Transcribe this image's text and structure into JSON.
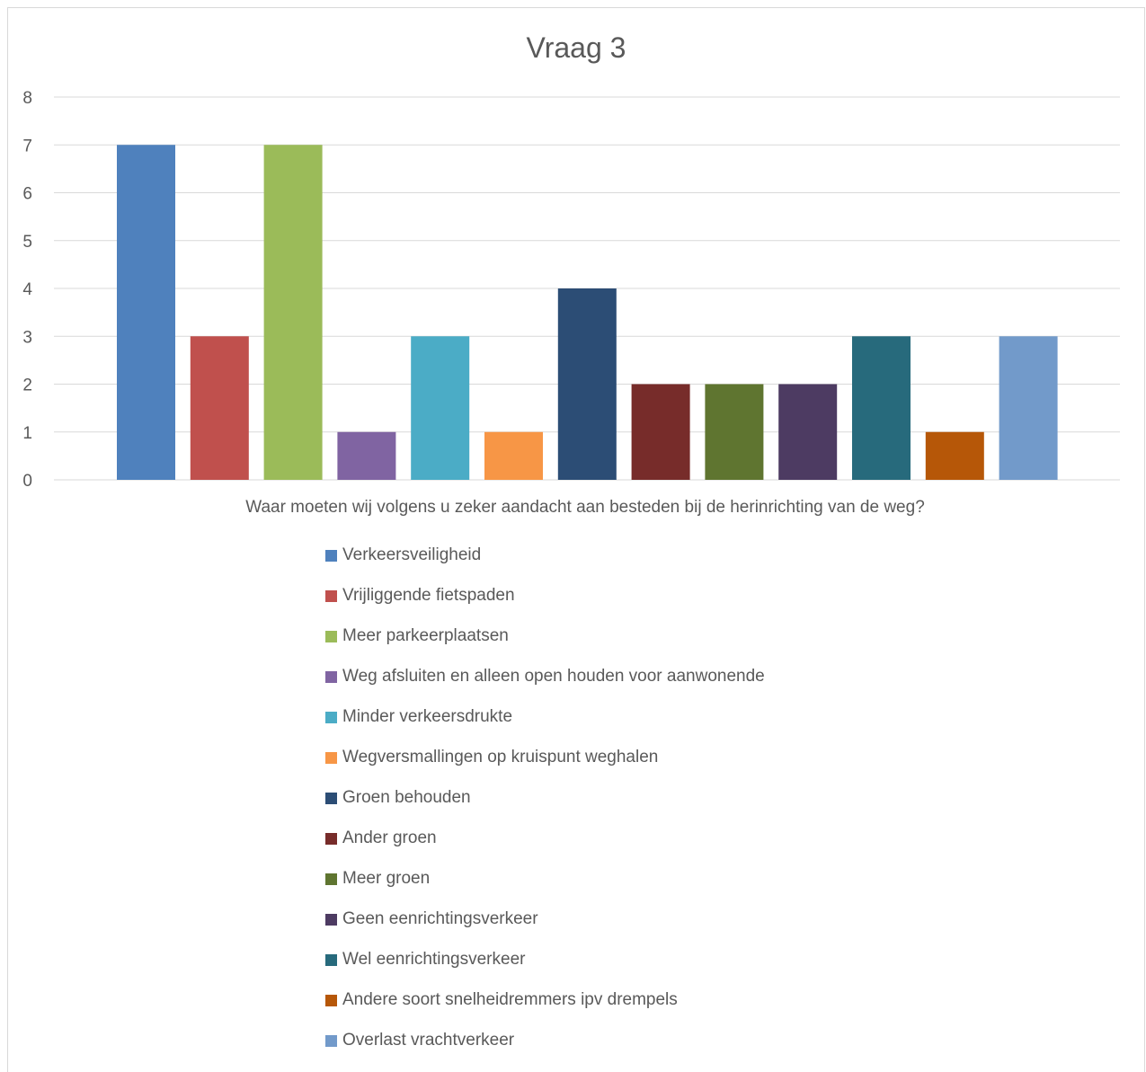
{
  "chart_data": {
    "type": "bar",
    "title": "Vraag 3",
    "xlabel": "Waar moeten wij volgens u zeker aandacht aan besteden bij de herinrichting van de weg?",
    "ylabel": "",
    "ylim": [
      0,
      8
    ],
    "yticks": [
      "0",
      "1",
      "2",
      "3",
      "4",
      "5",
      "6",
      "7",
      "8"
    ],
    "grid": true,
    "legend_position": "bottom",
    "series": [
      {
        "name": "Verkeersveiligheid",
        "value": 7,
        "color": "#4f81bd"
      },
      {
        "name": "Vrijliggende fietspaden",
        "value": 3,
        "color": "#c0504d"
      },
      {
        "name": "Meer parkeerplaatsen",
        "value": 7,
        "color": "#9bbb59"
      },
      {
        "name": "Weg afsluiten en alleen open houden voor aanwonende",
        "value": 1,
        "color": "#8064a2"
      },
      {
        "name": "Minder verkeersdrukte",
        "value": 3,
        "color": "#4bacc6"
      },
      {
        "name": "Wegversmallingen op kruispunt weghalen",
        "value": 1,
        "color": "#f79646"
      },
      {
        "name": "Groen behouden",
        "value": 4,
        "color": "#2c4d75"
      },
      {
        "name": "Ander groen",
        "value": 2,
        "color": "#772c2a"
      },
      {
        "name": "Meer groen",
        "value": 2,
        "color": "#5f7530"
      },
      {
        "name": "Geen eenrichtingsverkeer",
        "value": 2,
        "color": "#4d3b62"
      },
      {
        "name": "Wel eenrichtingsverkeer",
        "value": 3,
        "color": "#276a7c"
      },
      {
        "name": "Andere soort snelheidremmers ipv drempels",
        "value": 1,
        "color": "#b65708"
      },
      {
        "name": "Overlast vrachtverkeer",
        "value": 3,
        "color": "#729aca"
      }
    ]
  }
}
